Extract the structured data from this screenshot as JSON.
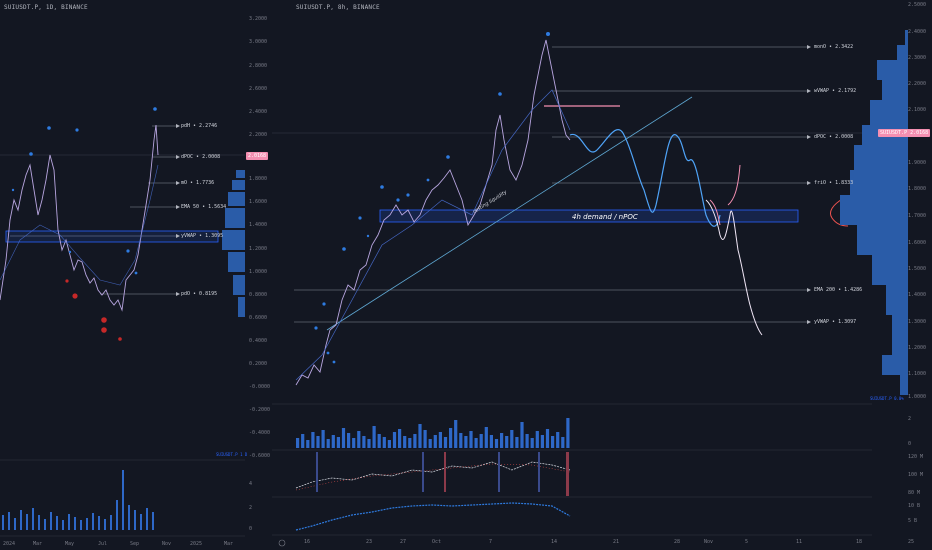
{
  "left": {
    "title": "SUIUSDT.P, 1D, BINANCE",
    "price_ticks": [
      "3.2000",
      "3.0000",
      "2.8000",
      "2.6000",
      "2.4000",
      "2.2000",
      "2.0000",
      "1.8000",
      "1.6000",
      "1.4000",
      "1.2000",
      "1.0000",
      "0.8000",
      "0.6000",
      "0.4000",
      "0.2000",
      "-0.0000",
      "-0.2000",
      "-0.4000",
      "-0.6000"
    ],
    "time_ticks": [
      "2024",
      "Mar",
      "May",
      "Jul",
      "Sep",
      "Nov",
      "2025",
      "Mar"
    ],
    "levels": [
      "pdH • 2.2746",
      "dPOC • 2.0008",
      "mO • 1.7736",
      "EMA 50 • 1.5634",
      "yVWAP • 1.3095",
      "pdO • 0.8195"
    ],
    "price_badge": "2.0168",
    "symbol_tag": "SUIUSDT.P 1 D",
    "volume_ticks": [
      "4",
      "2",
      "0"
    ]
  },
  "right": {
    "title": "SUIUSDT.P, 8h, BINANCE",
    "price_ticks": [
      "2.5000",
      "2.4000",
      "2.3000",
      "2.2000",
      "2.1000",
      "2.0000",
      "1.9000",
      "1.8000",
      "1.7000",
      "1.6000",
      "1.5000",
      "1.4000",
      "1.3000",
      "1.2000",
      "1.1000",
      "1.0000"
    ],
    "time_ticks": [
      "16",
      "23",
      "27",
      "Oct",
      "7",
      "14",
      "21",
      "28",
      "Nov",
      "5",
      "11",
      "18",
      "25"
    ],
    "levels": [
      "monO • 2.3422",
      "wVWAP • 2.1792",
      "dPOC • 2.0008",
      "friO • 1.8333",
      "EMA 200 • 1.4286",
      "yVWAP • 1.3097"
    ],
    "price_badge": "SUIUSDT.P 2.0168",
    "symbol_tag": "SUIUSDT.P 0.0%",
    "zone_label": "4h demand / nPOC",
    "trendline_label": "resting liquidity",
    "vol_ticks": [
      "2",
      "0"
    ],
    "osc1_ticks": [
      "120 M",
      "100 M",
      "80 M"
    ],
    "osc2_ticks": [
      "10 B",
      "5 B"
    ]
  },
  "colors": {
    "bg": "#131722",
    "level_line": "#8a8f9c",
    "zone": "#2962ff",
    "candle_up": "#4a6fd4",
    "candle_down": "#b8a6e0",
    "volume": "#2e68c8",
    "profile": "#2a5ca8",
    "pink": "#f48fb1",
    "red_dot": "#c62828"
  }
}
